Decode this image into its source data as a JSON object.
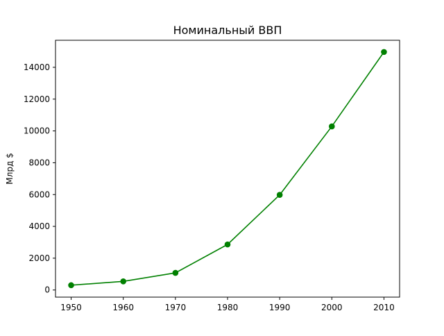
{
  "chart_data": {
    "type": "line",
    "title": "Номинальный ВВП",
    "xlabel": "",
    "ylabel": "Млрд $",
    "x": [
      1950,
      1960,
      1970,
      1980,
      1990,
      2000,
      2010
    ],
    "series": [
      {
        "values": [
          300,
          543,
          1076,
          2863,
          5980,
          10285,
          14964
        ],
        "color": "#008000",
        "marker": "circle"
      }
    ],
    "xticks": [
      "1950",
      "1960",
      "1970",
      "1980",
      "1990",
      "2000",
      "2010"
    ],
    "yticks": [
      "0",
      "2000",
      "4000",
      "6000",
      "8000",
      "10000",
      "12000",
      "14000"
    ],
    "xlim": [
      1947,
      2013
    ],
    "ylim": [
      -448,
      15700
    ],
    "grid": false,
    "legend": "none"
  }
}
